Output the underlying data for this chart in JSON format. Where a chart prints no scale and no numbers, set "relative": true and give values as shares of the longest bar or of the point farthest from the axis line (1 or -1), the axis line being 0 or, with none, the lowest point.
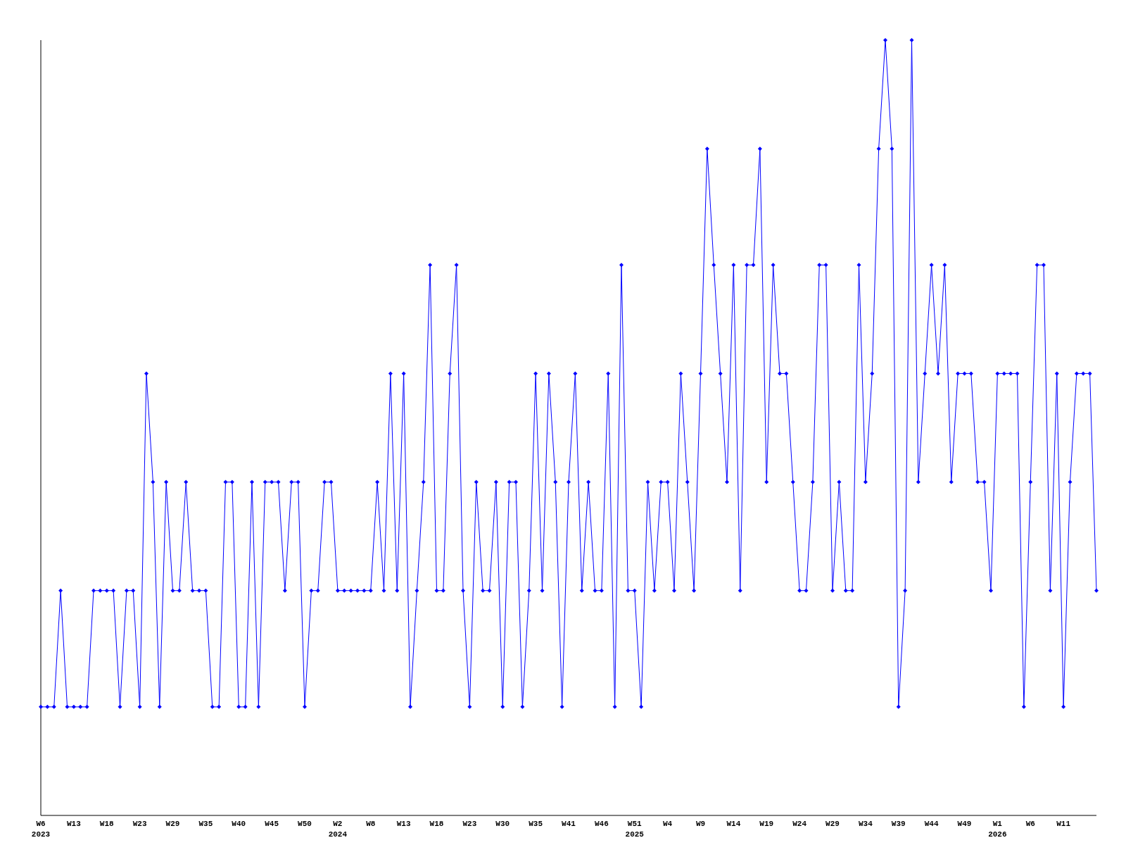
{
  "chart_data": {
    "type": "line",
    "relative": true,
    "marker": "diamond",
    "line_style": "solid",
    "categories": [
      "W6\n2023",
      null,
      null,
      null,
      null,
      "W13",
      null,
      null,
      null,
      null,
      "W18",
      null,
      null,
      null,
      null,
      "W23",
      null,
      null,
      null,
      null,
      "W29",
      null,
      null,
      null,
      null,
      "W35",
      null,
      null,
      null,
      null,
      "W40",
      null,
      null,
      null,
      null,
      "W45",
      null,
      null,
      null,
      null,
      "W50",
      null,
      null,
      null,
      null,
      "W2\n2024",
      null,
      null,
      null,
      null,
      "W8",
      null,
      null,
      null,
      null,
      "W13",
      null,
      null,
      null,
      null,
      "W18",
      null,
      null,
      null,
      null,
      "W23",
      null,
      null,
      null,
      null,
      "W30",
      null,
      null,
      null,
      null,
      "W35",
      null,
      null,
      null,
      null,
      "W41",
      null,
      null,
      null,
      null,
      "W46",
      null,
      null,
      null,
      null,
      "W51\n2025",
      null,
      null,
      null,
      null,
      "W4",
      null,
      null,
      null,
      null,
      "W9",
      null,
      null,
      null,
      null,
      "W14",
      null,
      null,
      null,
      null,
      "W19",
      null,
      null,
      null,
      null,
      "W24",
      null,
      null,
      null,
      null,
      "W29",
      null,
      null,
      null,
      null,
      "W34",
      null,
      null,
      null,
      null,
      "W39",
      null,
      null,
      null,
      null,
      "W44",
      null,
      null,
      null,
      null,
      "W49",
      null,
      null,
      null,
      null,
      "W1\n2026",
      null,
      null,
      null,
      null,
      "W6",
      null,
      null,
      null,
      null,
      "W11",
      null,
      null,
      null,
      null,
      null
    ],
    "series": [
      {
        "color": "#0000ff",
        "values": [
          0.14,
          0.14,
          0.14,
          0.29,
          0.14,
          0.14,
          0.14,
          0.14,
          0.29,
          0.29,
          0.29,
          0.29,
          0.14,
          0.29,
          0.29,
          0.14,
          0.57,
          0.43,
          0.14,
          0.43,
          0.29,
          0.29,
          0.43,
          0.29,
          0.29,
          0.29,
          0.14,
          0.14,
          0.43,
          0.43,
          0.14,
          0.14,
          0.43,
          0.14,
          0.43,
          0.43,
          0.43,
          0.29,
          0.43,
          0.43,
          0.14,
          0.29,
          0.29,
          0.43,
          0.43,
          0.29,
          0.29,
          0.29,
          0.29,
          0.29,
          0.29,
          0.43,
          0.29,
          0.57,
          0.29,
          0.57,
          0.14,
          0.29,
          0.43,
          0.71,
          0.29,
          0.29,
          0.57,
          0.71,
          0.29,
          0.14,
          0.43,
          0.29,
          0.29,
          0.43,
          0.14,
          0.43,
          0.43,
          0.14,
          0.29,
          0.57,
          0.29,
          0.57,
          0.43,
          0.14,
          0.43,
          0.57,
          0.29,
          0.43,
          0.29,
          0.29,
          0.57,
          0.14,
          0.71,
          0.29,
          0.29,
          0.14,
          0.43,
          0.29,
          0.43,
          0.43,
          0.29,
          0.57,
          0.43,
          0.29,
          0.57,
          0.86,
          0.71,
          0.57,
          0.43,
          0.71,
          0.29,
          0.71,
          0.71,
          0.86,
          0.43,
          0.71,
          0.57,
          0.57,
          0.43,
          0.29,
          0.29,
          0.43,
          0.71,
          0.71,
          0.29,
          0.43,
          0.29,
          0.29,
          0.71,
          0.43,
          0.57,
          0.86,
          1,
          0.86,
          0.14,
          0.29,
          1,
          0.43,
          0.57,
          0.71,
          0.57,
          0.71,
          0.43,
          0.57,
          0.57,
          0.57,
          0.43,
          0.43,
          0.29,
          0.57,
          0.57,
          0.57,
          0.57,
          0.14,
          0.43,
          0.71,
          0.71,
          0.29,
          0.57,
          0.14,
          0.43,
          0.57,
          0.57,
          0.57,
          0.29
        ]
      }
    ]
  }
}
